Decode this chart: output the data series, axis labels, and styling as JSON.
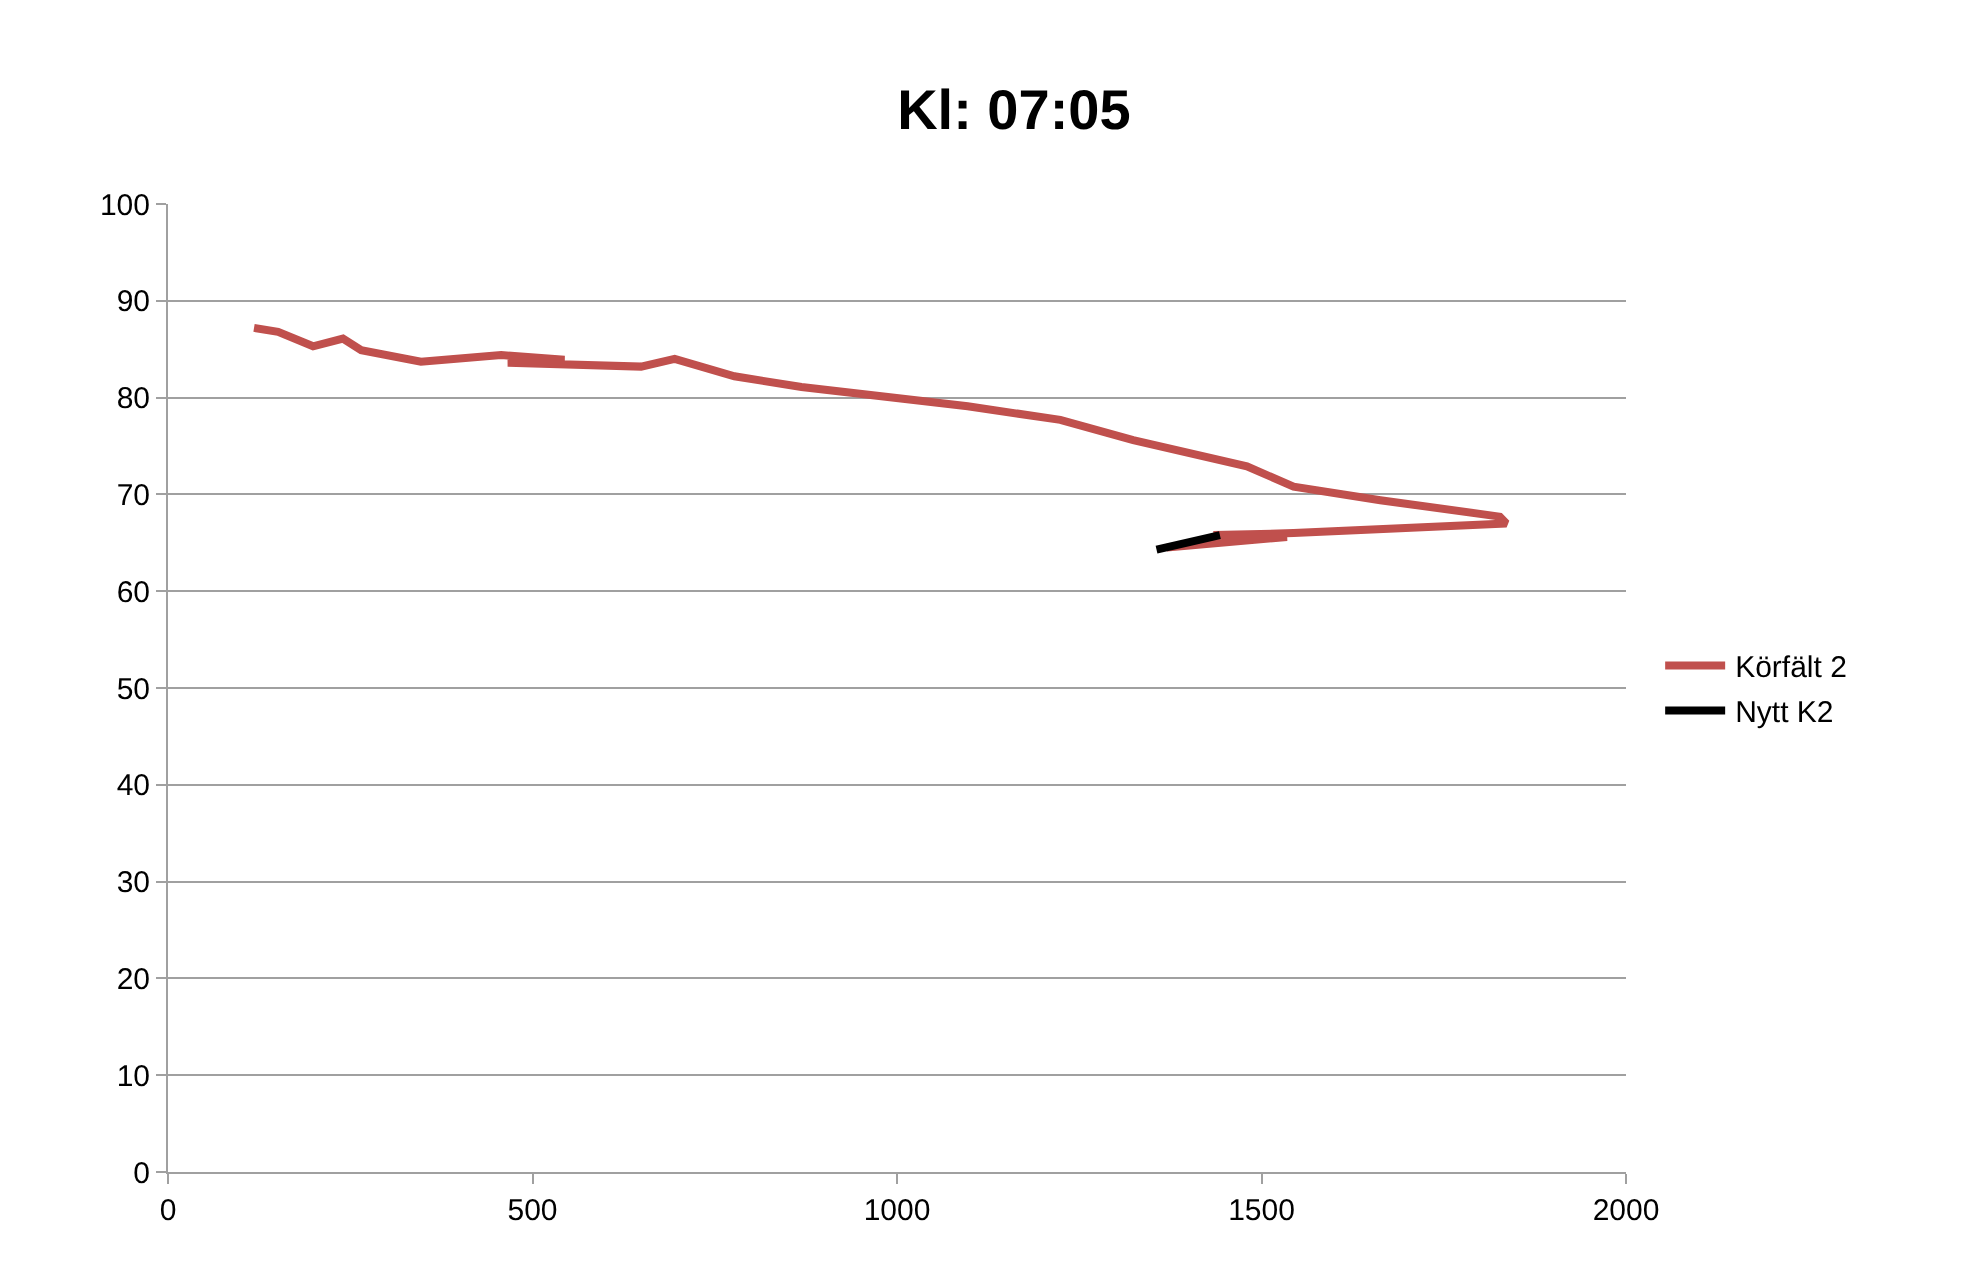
{
  "chart_data": {
    "type": "line",
    "title": "Kl: 07:05",
    "series": [
      {
        "name": "Körfält 2",
        "color": "#c0504d",
        "x": [
          118,
          151,
          199,
          240,
          265,
          347,
          457,
          544,
          466,
          649,
          695,
          777,
          869,
          1097,
          1224,
          1324,
          1480,
          1544,
          1663,
          1827,
          1836,
          1544,
          1434,
          1535,
          1370
        ],
        "values": [
          87.2,
          86.8,
          85.3,
          86.1,
          84.9,
          83.7,
          84.4,
          83.9,
          83.6,
          83.2,
          84.0,
          82.2,
          81.1,
          79.1,
          77.7,
          75.6,
          72.9,
          70.8,
          69.4,
          67.7,
          67.0,
          66.0,
          65.8,
          65.6,
          64.5
        ]
      },
      {
        "name": "Nytt K2",
        "color": "#000000",
        "x": [
          1356,
          1443
        ],
        "values": [
          64.3,
          65.8
        ]
      }
    ],
    "xlim": [
      0,
      2000
    ],
    "xticks": [
      0,
      500,
      1000,
      1500,
      2000
    ],
    "ylim": [
      0,
      100
    ],
    "yticks": [
      0,
      10,
      20,
      30,
      40,
      50,
      60,
      70,
      80,
      90,
      100
    ],
    "grid": "y",
    "legend": "right",
    "marker": "none",
    "line_style": "solid"
  }
}
